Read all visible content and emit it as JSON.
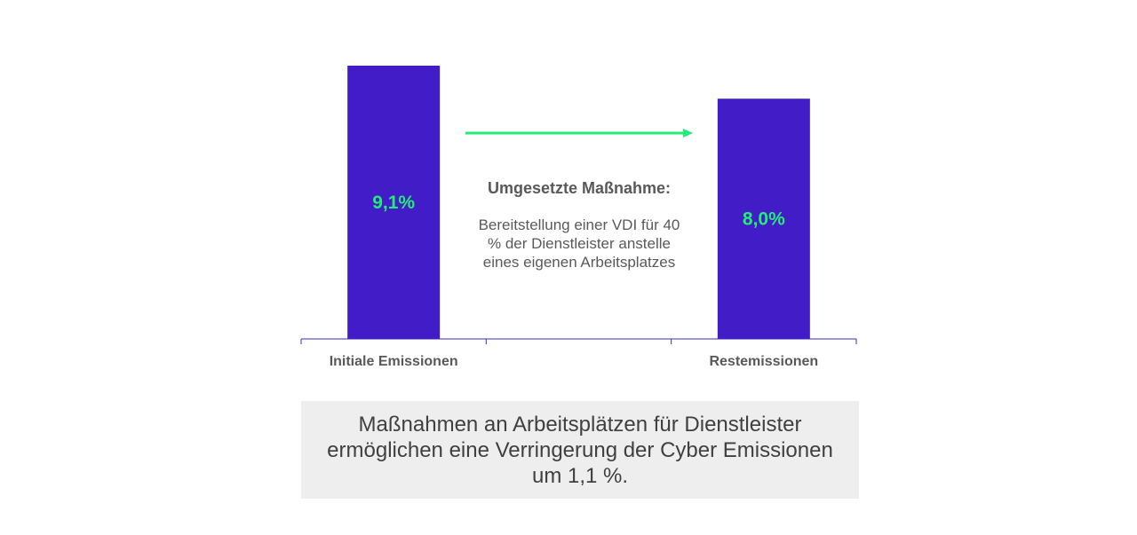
{
  "chart_data": {
    "type": "bar",
    "categories": [
      "Initiale Emissionen",
      "",
      "Restemissionen"
    ],
    "values": [
      9.1,
      null,
      8.0
    ],
    "value_labels": [
      "9,1%",
      "",
      "8,0%"
    ],
    "ylim": [
      0,
      9.1
    ],
    "grid": false,
    "title": "",
    "xlabel": "",
    "ylabel": ""
  },
  "annotation": {
    "title": "Umgesetzte Maßnahme:",
    "body": "Bereitstellung einer VDI für 40 % der Dienstleister anstelle eines eigenen Arbeitsplatzes"
  },
  "summary": {
    "text": "Maßnahmen an Arbeitsplätzen für Dienstleister ermöglichen eine Verringerung der Cyber Emissionen um 1,1 %."
  },
  "colors": {
    "bar": "#421cc6",
    "bar_label": "#22ee77",
    "arrow": "#22ee77",
    "axis": "#3a2bb8",
    "category_label": "#595959",
    "summary_background": "#eeeeee"
  },
  "icons": {
    "arrow": "right-arrow-icon"
  }
}
